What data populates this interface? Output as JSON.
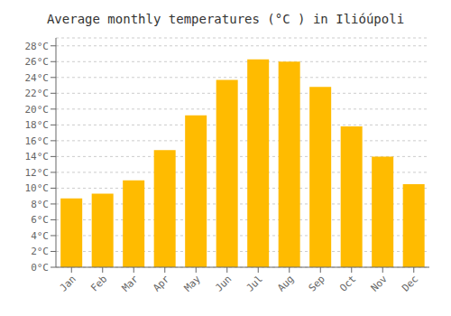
{
  "chart_data": {
    "type": "bar",
    "title": "Average monthly temperatures (°C ) in Ilióúpoli",
    "categories": [
      "Jan",
      "Feb",
      "Mar",
      "Apr",
      "May",
      "Jun",
      "Jul",
      "Aug",
      "Sep",
      "Oct",
      "Nov",
      "Dec"
    ],
    "values": [
      8.7,
      9.3,
      11.0,
      14.8,
      19.2,
      23.7,
      26.3,
      26.0,
      22.8,
      17.8,
      14.0,
      10.5
    ],
    "color": "#FFBB00",
    "ylim": [
      0,
      29
    ],
    "yticks": [
      {
        "value": 0,
        "label": "0°C"
      },
      {
        "value": 2,
        "label": "2°C"
      },
      {
        "value": 4,
        "label": "4°C"
      },
      {
        "value": 6,
        "label": "6°C"
      },
      {
        "value": 8,
        "label": "8°C"
      },
      {
        "value": 10,
        "label": "10°C"
      },
      {
        "value": 12,
        "label": "12°C"
      },
      {
        "value": 14,
        "label": "14°C"
      },
      {
        "value": 16,
        "label": "16°C"
      },
      {
        "value": 18,
        "label": "18°C"
      },
      {
        "value": 20,
        "label": "20°C"
      },
      {
        "value": 22,
        "label": "22°C"
      },
      {
        "value": 24,
        "label": "24°C"
      },
      {
        "value": 26,
        "label": "26°C"
      },
      {
        "value": 28,
        "label": "28°C"
      }
    ],
    "grid": true
  }
}
